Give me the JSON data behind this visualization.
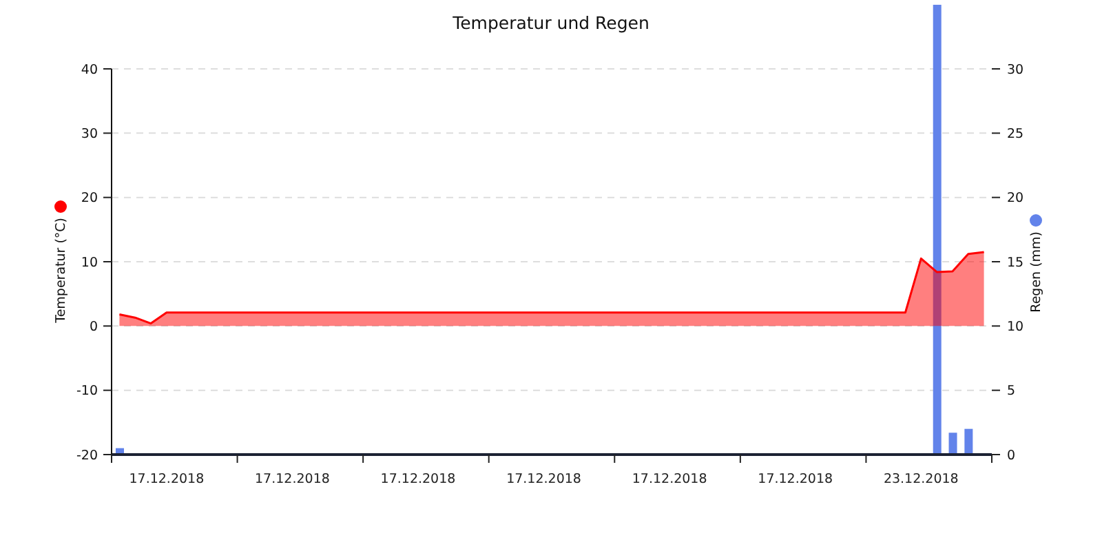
{
  "chart_data": {
    "type": "area",
    "title": "Temperatur und Regen",
    "ylabel": "Temperatur (°C)",
    "y2label": "Regen (mm)",
    "categories": [
      null,
      null,
      null,
      "17.12.2018",
      null,
      null,
      null,
      null,
      null,
      null,
      null,
      "17.12.2018",
      null,
      null,
      null,
      null,
      null,
      null,
      null,
      "17.12.2018",
      null,
      null,
      null,
      null,
      null,
      null,
      null,
      "17.12.2018",
      null,
      null,
      null,
      null,
      null,
      null,
      null,
      "17.12.2018",
      null,
      null,
      null,
      null,
      null,
      null,
      null,
      "17.12.2018",
      null,
      null,
      null,
      null,
      null,
      null,
      null,
      "23.12.2018",
      null,
      null,
      null,
      null
    ],
    "ylim": [
      -20,
      40
    ],
    "yticks": [
      -20,
      -10,
      0,
      10,
      20,
      30,
      40
    ],
    "y2lim": [
      0,
      35
    ],
    "y2ticks": [
      0,
      5,
      10,
      15,
      20,
      25,
      30
    ],
    "grid": "y",
    "series": [
      {
        "type": "bar",
        "axis": "y2",
        "color": "#6283ea",
        "values": [
          0.5,
          null,
          null,
          null,
          null,
          null,
          null,
          null,
          null,
          null,
          null,
          null,
          null,
          null,
          null,
          null,
          null,
          null,
          null,
          null,
          null,
          null,
          null,
          null,
          null,
          null,
          null,
          null,
          null,
          null,
          null,
          null,
          null,
          null,
          null,
          null,
          null,
          null,
          null,
          null,
          null,
          null,
          null,
          null,
          null,
          null,
          null,
          null,
          null,
          null,
          null,
          null,
          35,
          1.7,
          2,
          null
        ]
      },
      {
        "color": "#ff0000",
        "values": [
          1.8,
          1.3,
          0.4,
          2.1,
          2.1,
          2.1,
          2.1,
          2.1,
          2.1,
          2.1,
          2.1,
          2.1,
          2.1,
          2.1,
          2.1,
          2.1,
          2.1,
          2.1,
          2.1,
          2.1,
          2.1,
          2.1,
          2.1,
          2.1,
          2.1,
          2.1,
          2.1,
          2.1,
          2.1,
          2.1,
          2.1,
          2.1,
          2.1,
          2.1,
          2.1,
          2.1,
          2.1,
          2.1,
          2.1,
          2.1,
          2.1,
          2.1,
          2.1,
          2.1,
          2.1,
          2.1,
          2.1,
          2.1,
          2.1,
          2.1,
          2.1,
          10.5,
          8.4,
          8.5,
          11.2,
          11.5
        ]
      }
    ]
  }
}
